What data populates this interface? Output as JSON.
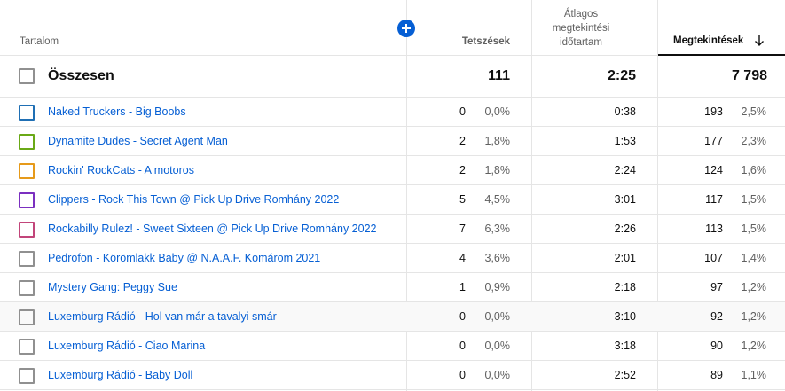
{
  "header": {
    "content_label": "Tartalom",
    "likes_label": "Tetszések",
    "avg_line1": "Átlagos",
    "avg_line2": "megtekintési",
    "avg_line3": "időtartam",
    "views_label": "Megtekintések",
    "sort_icon": "arrow-down-icon",
    "add_icon": "plus-circle-icon"
  },
  "total": {
    "label": "Összesen",
    "likes": "111",
    "avg": "2:25",
    "views": "7 798"
  },
  "rows": [
    {
      "title": "Naked Truckers - Big Boobs",
      "likes": "0",
      "likes_pct": "0,0%",
      "avg": "0:38",
      "views": "193",
      "views_pct": "2,5%",
      "color": "#1f6fb4"
    },
    {
      "title": "Dynamite Dudes - Secret Agent Man",
      "likes": "2",
      "likes_pct": "1,8%",
      "avg": "1:53",
      "views": "177",
      "views_pct": "2,3%",
      "color": "#6aa917"
    },
    {
      "title": "Rockin' RockCats - A motoros",
      "likes": "2",
      "likes_pct": "1,8%",
      "avg": "2:24",
      "views": "124",
      "views_pct": "1,6%",
      "color": "#e69a1a"
    },
    {
      "title": "Clippers - Rock This Town @ Pick Up Drive Romhány 2022",
      "likes": "5",
      "likes_pct": "4,5%",
      "avg": "3:01",
      "views": "117",
      "views_pct": "1,5%",
      "color": "#7b2fc0"
    },
    {
      "title": "Rockabilly Rulez! - Sweet Sixteen @ Pick Up Drive Romhány 2022",
      "likes": "7",
      "likes_pct": "6,3%",
      "avg": "2:26",
      "views": "113",
      "views_pct": "1,5%",
      "color": "#c2457a"
    },
    {
      "title": "Pedrofon - Körömlakk Baby @ N.A.A.F. Komárom 2021",
      "likes": "4",
      "likes_pct": "3,6%",
      "avg": "2:01",
      "views": "107",
      "views_pct": "1,4%",
      "color": "#909090"
    },
    {
      "title": "Mystery Gang: Peggy Sue",
      "likes": "1",
      "likes_pct": "0,9%",
      "avg": "2:18",
      "views": "97",
      "views_pct": "1,2%",
      "color": "#909090"
    },
    {
      "title": "Luxemburg Rádió - Hol van már a tavalyi smár",
      "likes": "0",
      "likes_pct": "0,0%",
      "avg": "3:10",
      "views": "92",
      "views_pct": "1,2%",
      "color": "#909090"
    },
    {
      "title": "Luxemburg Rádió - Ciao Marina",
      "likes": "0",
      "likes_pct": "0,0%",
      "avg": "3:18",
      "views": "90",
      "views_pct": "1,2%",
      "color": "#909090"
    },
    {
      "title": "Luxemburg Rádió - Baby Doll",
      "likes": "0",
      "likes_pct": "0,0%",
      "avg": "2:52",
      "views": "89",
      "views_pct": "1,1%",
      "color": "#909090"
    }
  ]
}
